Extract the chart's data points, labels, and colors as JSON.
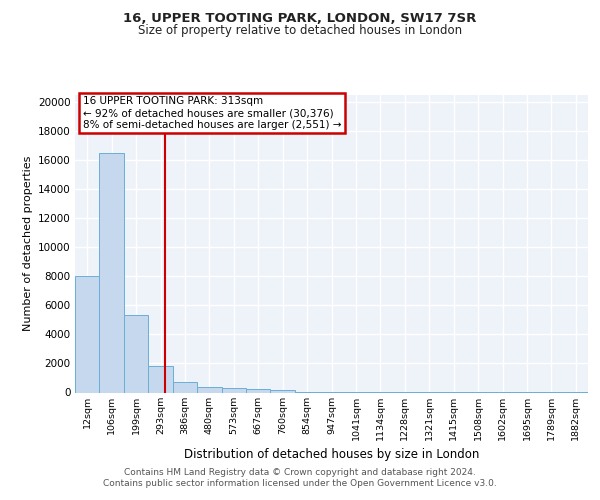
{
  "title1": "16, UPPER TOOTING PARK, LONDON, SW17 7SR",
  "title2": "Size of property relative to detached houses in London",
  "xlabel": "Distribution of detached houses by size in London",
  "ylabel": "Number of detached properties",
  "bar_labels": [
    "12sqm",
    "106sqm",
    "199sqm",
    "293sqm",
    "386sqm",
    "480sqm",
    "573sqm",
    "667sqm",
    "760sqm",
    "854sqm",
    "947sqm",
    "1041sqm",
    "1134sqm",
    "1228sqm",
    "1321sqm",
    "1415sqm",
    "1508sqm",
    "1602sqm",
    "1695sqm",
    "1789sqm",
    "1882sqm"
  ],
  "bar_values": [
    8050,
    16500,
    5350,
    1850,
    750,
    350,
    295,
    230,
    175,
    30,
    20,
    15,
    10,
    10,
    8,
    8,
    6,
    5,
    5,
    4,
    3
  ],
  "bar_color": "#c5d8ee",
  "bar_edge_color": "#6baed6",
  "annotation_text": "16 UPPER TOOTING PARK: 313sqm\n← 92% of detached houses are smaller (30,376)\n8% of semi-detached houses are larger (2,551) →",
  "red_line_x": 3.17,
  "ylim": [
    0,
    20500
  ],
  "yticks": [
    0,
    2000,
    4000,
    6000,
    8000,
    10000,
    12000,
    14000,
    16000,
    18000,
    20000
  ],
  "background_color": "#eef2f9",
  "grid_color": "#ffffff",
  "footer_text": "Contains HM Land Registry data © Crown copyright and database right 2024.\nContains public sector information licensed under the Open Government Licence v3.0.",
  "annotation_box_facecolor": "#ffffff",
  "annotation_box_edgecolor": "#cc0000"
}
